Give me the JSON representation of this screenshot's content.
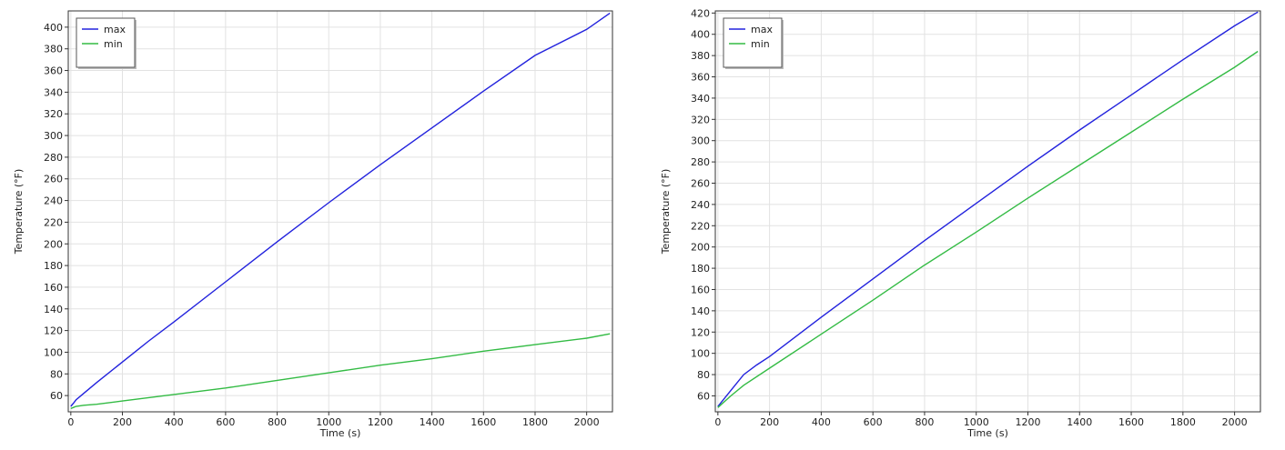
{
  "chart_data": [
    {
      "type": "line",
      "title": "",
      "xlabel": "Time (s)",
      "ylabel": "Temperature (°F)",
      "xlim": [
        -10,
        2100
      ],
      "ylim": [
        45,
        415
      ],
      "xticks": [
        0,
        200,
        400,
        600,
        800,
        1000,
        1200,
        1400,
        1600,
        1800,
        2000
      ],
      "yticks": [
        60,
        80,
        100,
        120,
        140,
        160,
        180,
        200,
        220,
        240,
        260,
        280,
        300,
        320,
        340,
        360,
        380,
        400
      ],
      "grid": true,
      "legend_position": "top-left",
      "series": [
        {
          "name": "max",
          "color": "#2222dd",
          "x": [
            0,
            10,
            20,
            50,
            100,
            200,
            300,
            400,
            600,
            800,
            1000,
            1200,
            1400,
            1600,
            1800,
            2000,
            2090
          ],
          "y": [
            50,
            53,
            56,
            62,
            72,
            91,
            110,
            128,
            165,
            202,
            238,
            273,
            307,
            341,
            374,
            398,
            413
          ]
        },
        {
          "name": "min",
          "color": "#33bb44",
          "x": [
            0,
            10,
            20,
            50,
            100,
            200,
            400,
            600,
            800,
            1000,
            1200,
            1400,
            1600,
            1800,
            2000,
            2090
          ],
          "y": [
            48,
            49,
            50,
            51,
            52,
            55,
            61,
            67,
            74,
            81,
            88,
            94,
            101,
            107,
            113,
            117
          ]
        }
      ]
    },
    {
      "type": "line",
      "title": "",
      "xlabel": "Time (s)",
      "ylabel": "Temperature (°F)",
      "xlim": [
        -10,
        2100
      ],
      "ylim": [
        45,
        422
      ],
      "xticks": [
        0,
        200,
        400,
        600,
        800,
        1000,
        1200,
        1400,
        1600,
        1800,
        2000
      ],
      "yticks": [
        60,
        80,
        100,
        120,
        140,
        160,
        180,
        200,
        220,
        240,
        260,
        280,
        300,
        320,
        340,
        360,
        380,
        400,
        420
      ],
      "grid": true,
      "legend_position": "top-left",
      "series": [
        {
          "name": "max",
          "color": "#2222dd",
          "x": [
            0,
            50,
            100,
            150,
            200,
            400,
            600,
            800,
            1000,
            1200,
            1400,
            1600,
            1800,
            2000,
            2090
          ],
          "y": [
            50,
            65,
            80,
            89,
            97,
            134,
            170,
            206,
            241,
            276,
            310,
            343,
            376,
            408,
            421
          ]
        },
        {
          "name": "min",
          "color": "#33bb44",
          "x": [
            0,
            50,
            100,
            200,
            400,
            600,
            800,
            1000,
            1200,
            1400,
            1600,
            1800,
            2000,
            2090
          ],
          "y": [
            49,
            60,
            70,
            86,
            118,
            150,
            183,
            214,
            246,
            277,
            308,
            339,
            369,
            384
          ]
        }
      ]
    }
  ]
}
